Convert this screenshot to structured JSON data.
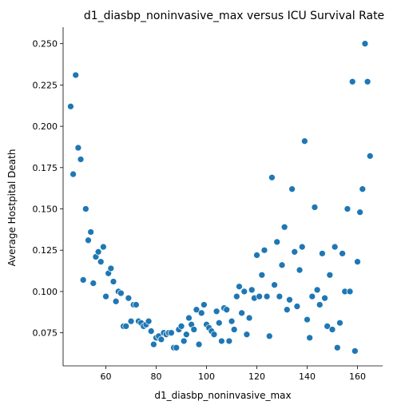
{
  "chart_data": {
    "type": "scatter",
    "title": "d1_diasbp_noninvasive_max versus ICU Survival Rate",
    "xlabel": "d1_diasbp_noninvasive_max",
    "ylabel": "Average Hostpital Death",
    "xlim": [
      43,
      170
    ],
    "ylim": [
      0.055,
      0.26
    ],
    "xticks": [
      "60",
      "80",
      "100",
      "120",
      "140",
      "160"
    ],
    "yticks": [
      "0.075",
      "0.100",
      "0.125",
      "0.150",
      "0.175",
      "0.200",
      "0.225",
      "0.250"
    ],
    "grid": false,
    "marker_color": "#1f77b4",
    "points": [
      [
        46,
        0.212
      ],
      [
        47,
        0.171
      ],
      [
        48,
        0.231
      ],
      [
        49,
        0.187
      ],
      [
        50,
        0.18
      ],
      [
        51,
        0.107
      ],
      [
        52,
        0.15
      ],
      [
        53,
        0.131
      ],
      [
        54,
        0.136
      ],
      [
        55,
        0.105
      ],
      [
        56,
        0.121
      ],
      [
        57,
        0.124
      ],
      [
        58,
        0.118
      ],
      [
        59,
        0.127
      ],
      [
        60,
        0.097
      ],
      [
        61,
        0.111
      ],
      [
        62,
        0.114
      ],
      [
        63,
        0.106
      ],
      [
        64,
        0.094
      ],
      [
        65,
        0.1
      ],
      [
        66,
        0.099
      ],
      [
        67,
        0.079
      ],
      [
        68,
        0.079
      ],
      [
        69,
        0.096
      ],
      [
        70,
        0.082
      ],
      [
        71,
        0.092
      ],
      [
        72,
        0.092
      ],
      [
        73,
        0.082
      ],
      [
        74,
        0.081
      ],
      [
        75,
        0.079
      ],
      [
        76,
        0.08
      ],
      [
        77,
        0.082
      ],
      [
        78,
        0.076
      ],
      [
        79,
        0.068
      ],
      [
        80,
        0.072
      ],
      [
        81,
        0.073
      ],
      [
        82,
        0.071
      ],
      [
        83,
        0.075
      ],
      [
        84,
        0.074
      ],
      [
        85,
        0.075
      ],
      [
        86,
        0.075
      ],
      [
        87,
        0.066
      ],
      [
        88,
        0.066
      ],
      [
        89,
        0.077
      ],
      [
        90,
        0.079
      ],
      [
        91,
        0.07
      ],
      [
        92,
        0.074
      ],
      [
        93,
        0.084
      ],
      [
        94,
        0.08
      ],
      [
        95,
        0.077
      ],
      [
        96,
        0.089
      ],
      [
        97,
        0.068
      ],
      [
        98,
        0.087
      ],
      [
        99,
        0.092
      ],
      [
        100,
        0.08
      ],
      [
        101,
        0.078
      ],
      [
        102,
        0.076
      ],
      [
        103,
        0.074
      ],
      [
        104,
        0.088
      ],
      [
        105,
        0.081
      ],
      [
        106,
        0.07
      ],
      [
        107,
        0.09
      ],
      [
        108,
        0.089
      ],
      [
        109,
        0.07
      ],
      [
        110,
        0.082
      ],
      [
        111,
        0.077
      ],
      [
        112,
        0.097
      ],
      [
        113,
        0.103
      ],
      [
        114,
        0.087
      ],
      [
        115,
        0.1
      ],
      [
        116,
        0.074
      ],
      [
        117,
        0.084
      ],
      [
        118,
        0.101
      ],
      [
        119,
        0.096
      ],
      [
        120,
        0.122
      ],
      [
        121,
        0.097
      ],
      [
        122,
        0.11
      ],
      [
        123,
        0.125
      ],
      [
        124,
        0.097
      ],
      [
        125,
        0.073
      ],
      [
        126,
        0.169
      ],
      [
        127,
        0.104
      ],
      [
        128,
        0.13
      ],
      [
        129,
        0.097
      ],
      [
        130,
        0.116
      ],
      [
        131,
        0.139
      ],
      [
        132,
        0.089
      ],
      [
        133,
        0.095
      ],
      [
        134,
        0.162
      ],
      [
        135,
        0.124
      ],
      [
        136,
        0.091
      ],
      [
        137,
        0.113
      ],
      [
        138,
        0.127
      ],
      [
        139,
        0.191
      ],
      [
        140,
        0.083
      ],
      [
        141,
        0.072
      ],
      [
        142,
        0.097
      ],
      [
        143,
        0.151
      ],
      [
        144,
        0.101
      ],
      [
        145,
        0.092
      ],
      [
        146,
        0.123
      ],
      [
        147,
        0.096
      ],
      [
        148,
        0.079
      ],
      [
        149,
        0.11
      ],
      [
        150,
        0.077
      ],
      [
        151,
        0.127
      ],
      [
        152,
        0.066
      ],
      [
        153,
        0.081
      ],
      [
        154,
        0.123
      ],
      [
        155,
        0.1
      ],
      [
        156,
        0.15
      ],
      [
        157,
        0.1
      ],
      [
        158,
        0.227
      ],
      [
        159,
        0.064
      ],
      [
        160,
        0.118
      ],
      [
        161,
        0.148
      ],
      [
        162,
        0.162
      ],
      [
        163,
        0.25
      ],
      [
        164,
        0.227
      ],
      [
        165,
        0.182
      ]
    ]
  }
}
